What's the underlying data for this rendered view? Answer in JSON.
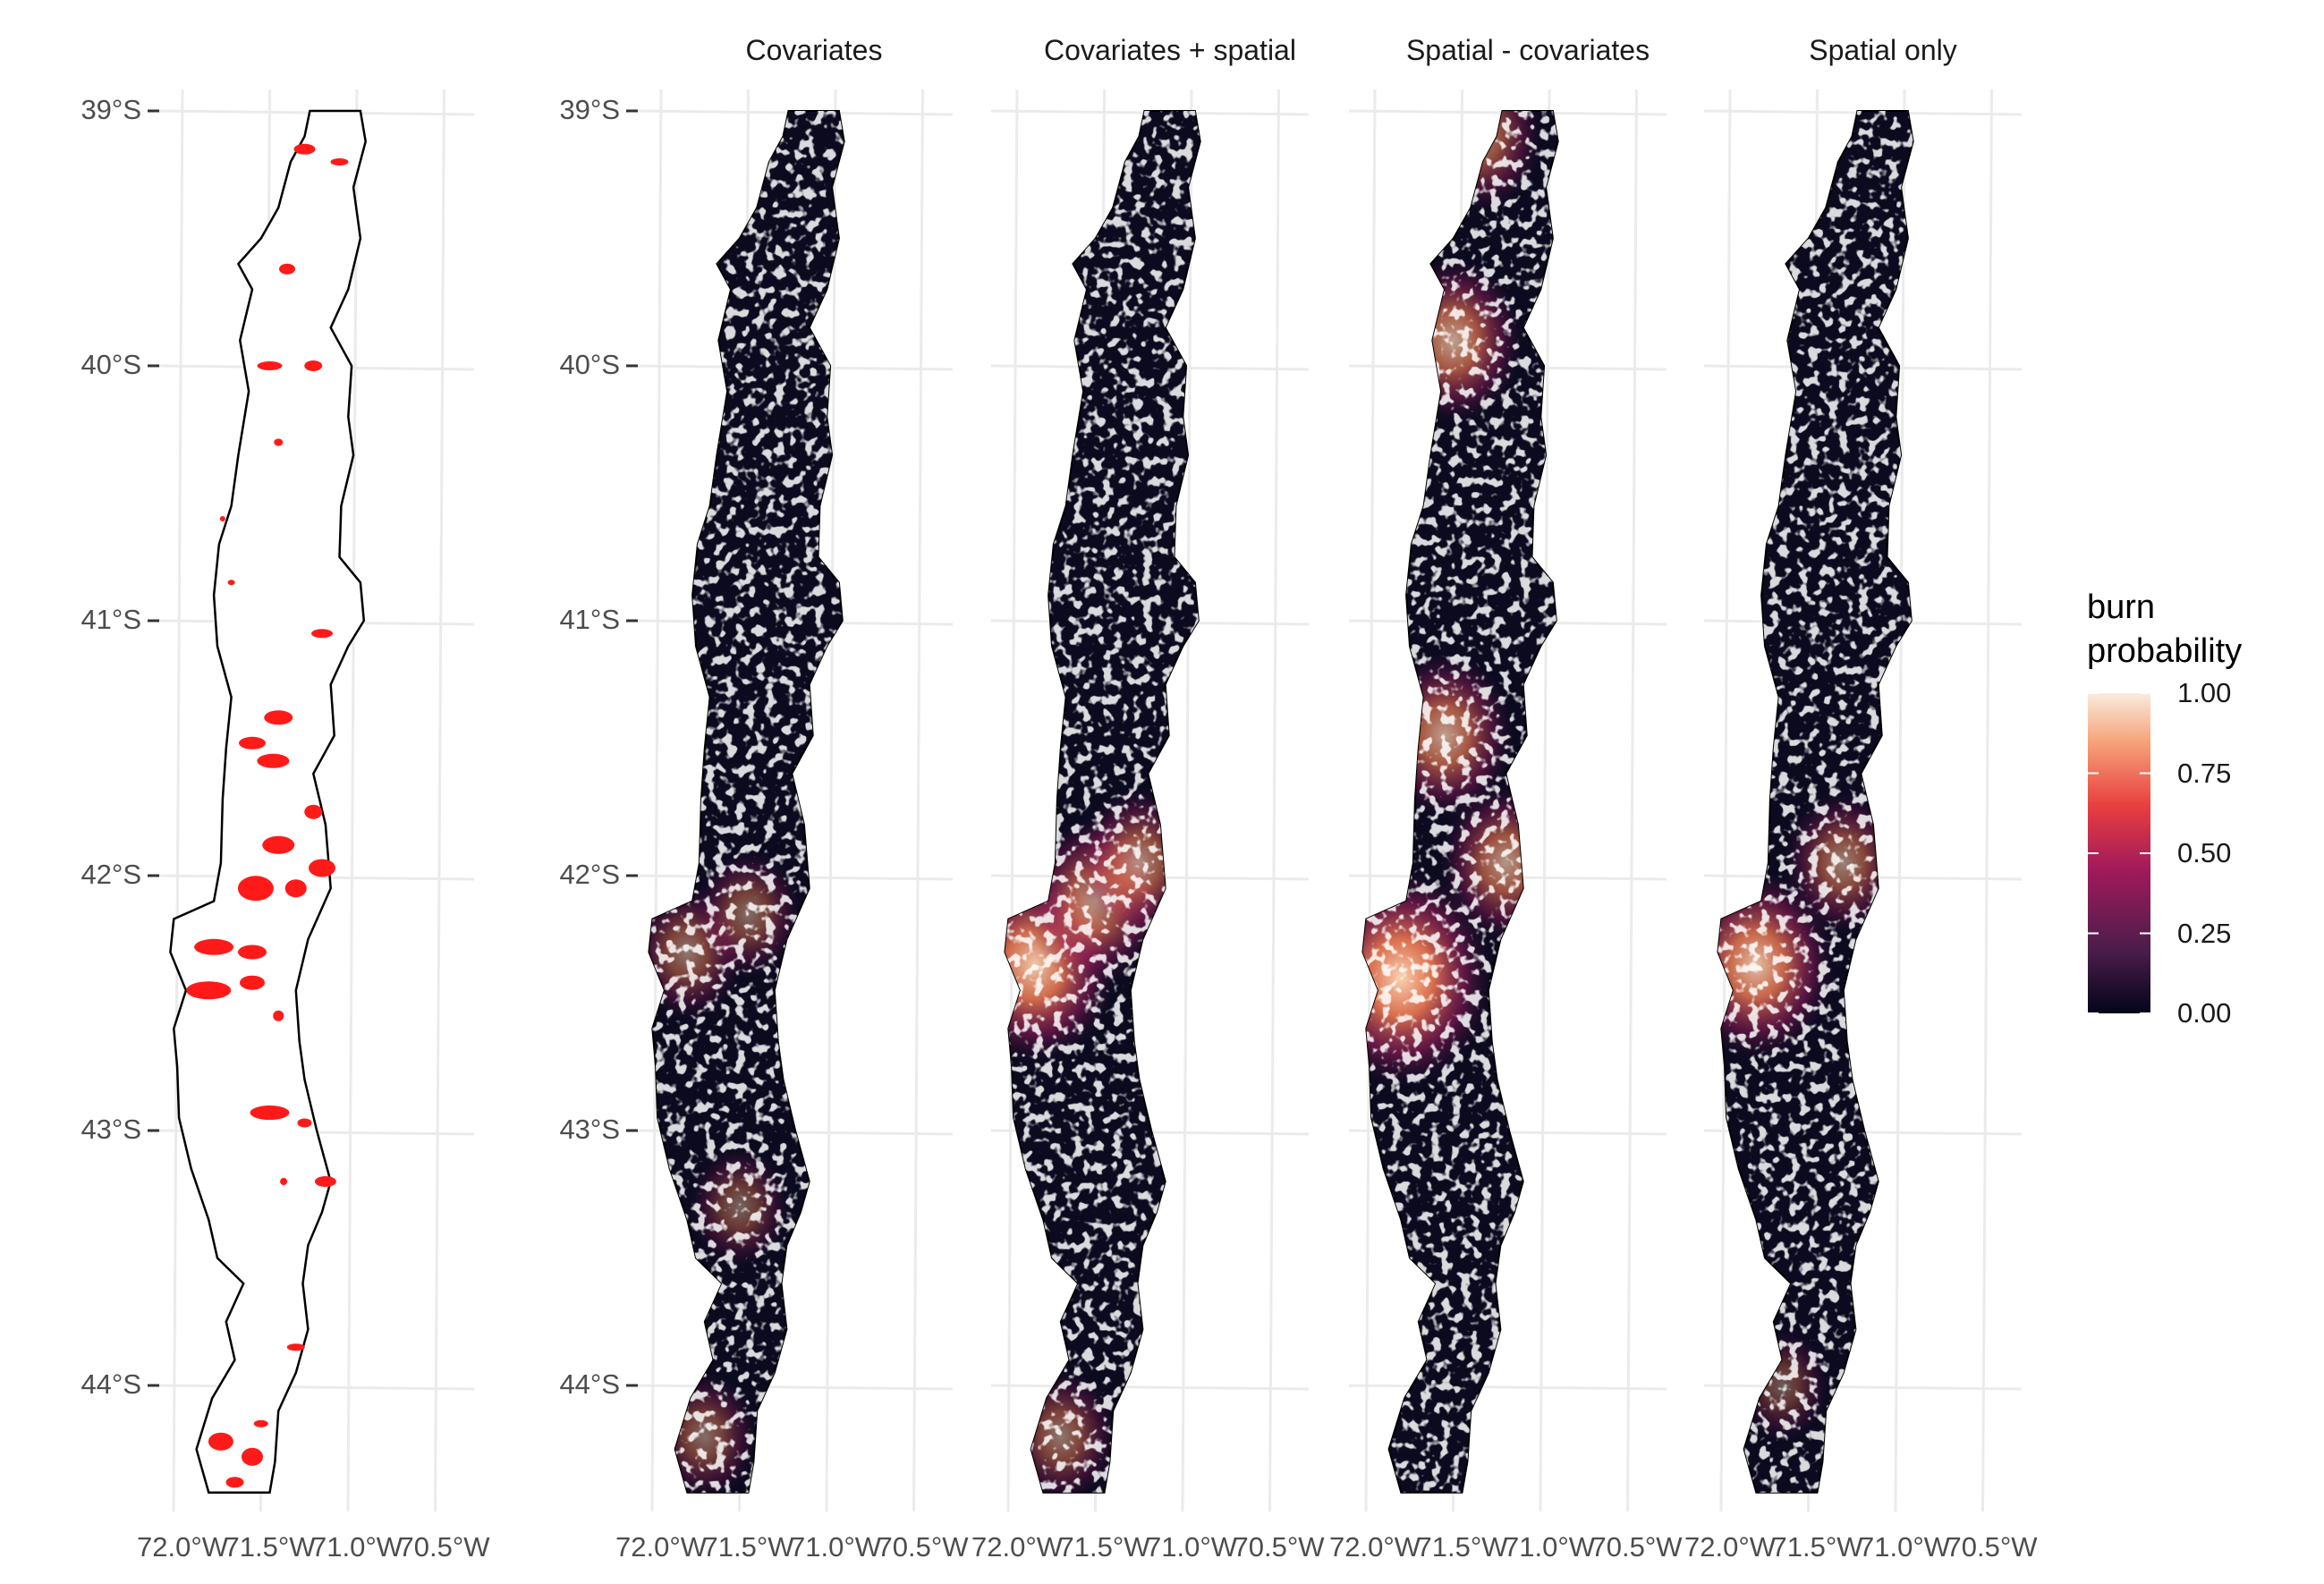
{
  "chart_data": {
    "type": "faceted-map",
    "panels": [
      {
        "title": "",
        "content": "observed burned areas (red) within study region outline"
      },
      {
        "title": "Covariates"
      },
      {
        "title": "Covariates + spatial"
      },
      {
        "title": "Spatial - covariates"
      },
      {
        "title": "Spatial only"
      }
    ],
    "y_ticks": [
      "39°S",
      "40°S",
      "41°S",
      "42°S",
      "43°S",
      "44°S"
    ],
    "y_values": [
      -39,
      -40,
      -41,
      -42,
      -43,
      -44
    ],
    "x_ticks": [
      "72.0°W",
      "71.5°W",
      "71.0°W",
      "70.5°W"
    ],
    "x_values": [
      -72.0,
      -71.5,
      -71.0,
      -70.5
    ],
    "xlim": [
      -72.1,
      -70.4
    ],
    "ylim": [
      -44.5,
      -38.9
    ],
    "legend": {
      "title_line1": "burn",
      "title_line2": "probability",
      "ticks": [
        "1.00",
        "0.75",
        "0.50",
        "0.25",
        "0.00"
      ],
      "tick_values": [
        1.0,
        0.75,
        0.5,
        0.25,
        0.0
      ],
      "colors": [
        "#03051a",
        "#4c1d4b",
        "#a11a5b",
        "#e83f3f",
        "#f6a47b",
        "#faebdd"
      ]
    },
    "hotspots": {
      "covariates": [
        {
          "lon": -71.85,
          "lat": -42.3,
          "p": 0.35
        },
        {
          "lon": -71.5,
          "lat": -42.15,
          "p": 0.3
        },
        {
          "lon": -71.55,
          "lat": -43.3,
          "p": 0.25
        },
        {
          "lon": -71.75,
          "lat": -44.2,
          "p": 0.3
        }
      ],
      "covariates_spatial": [
        {
          "lon": -71.9,
          "lat": -42.35,
          "p": 0.75
        },
        {
          "lon": -71.55,
          "lat": -42.1,
          "p": 0.55
        },
        {
          "lon": -71.3,
          "lat": -41.95,
          "p": 0.45
        },
        {
          "lon": -71.75,
          "lat": -44.2,
          "p": 0.35
        }
      ],
      "spatial_minus_covariates": [
        {
          "lon": -71.85,
          "lat": -42.4,
          "p": 0.9
        },
        {
          "lon": -71.6,
          "lat": -41.45,
          "p": 0.55
        },
        {
          "lon": -71.25,
          "lat": -41.95,
          "p": 0.5
        },
        {
          "lon": -71.4,
          "lat": -39.1,
          "p": 0.45
        },
        {
          "lon": -71.55,
          "lat": -39.9,
          "p": 0.55
        }
      ],
      "spatial_only": [
        {
          "lon": -71.85,
          "lat": -42.35,
          "p": 0.7
        },
        {
          "lon": -71.35,
          "lat": -41.95,
          "p": 0.4
        },
        {
          "lon": -71.7,
          "lat": -44.0,
          "p": 0.2
        }
      ]
    }
  }
}
